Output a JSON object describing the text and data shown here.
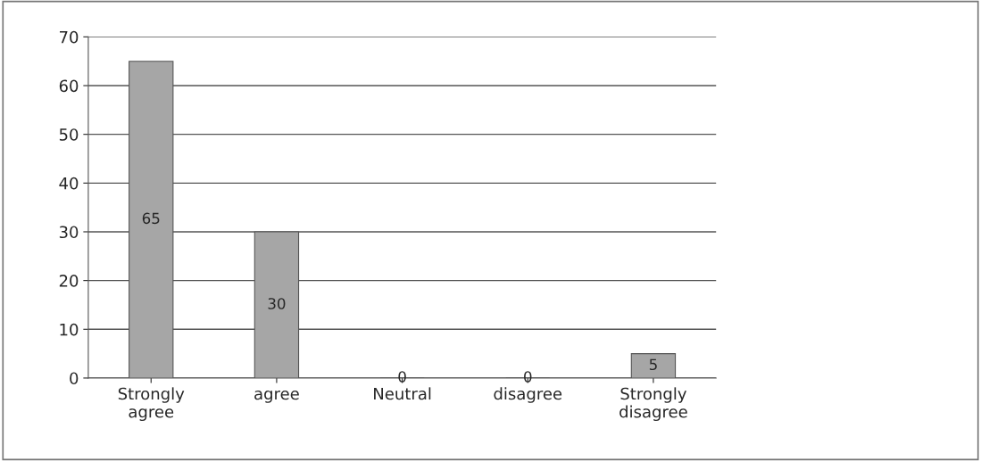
{
  "chart_data": {
    "type": "bar",
    "categories": [
      "Strongly\nagree",
      "agree",
      "Neutral",
      "disagree",
      "Strongly\ndisagree"
    ],
    "values": [
      65,
      30,
      0,
      0,
      5
    ],
    "color": "#a6a6a6",
    "ylim": [
      0,
      70
    ],
    "yticks": [
      0,
      10,
      20,
      30,
      40,
      50,
      60,
      70
    ],
    "grid": "y",
    "data_labels": true
  }
}
